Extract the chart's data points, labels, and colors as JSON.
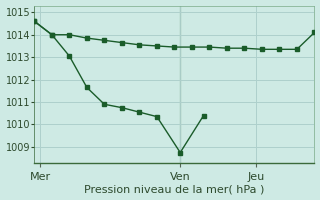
{
  "title": "",
  "xlabel": "Pression niveau de la mer( hPa )",
  "background_color": "#ceeae4",
  "grid_color": "#aed0cc",
  "line_color": "#1a5c2a",
  "marker_color": "#1a5c2a",
  "ylim": [
    1008.3,
    1015.3
  ],
  "yticks": [
    1009,
    1010,
    1011,
    1012,
    1013,
    1014,
    1015
  ],
  "xlim": [
    0,
    24
  ],
  "day_labels": [
    "Mer",
    "Ven",
    "Jeu"
  ],
  "day_positions": [
    0.5,
    12.5,
    19.0
  ],
  "vline_x": 12.5,
  "line1_x": [
    0,
    1.5,
    3.0,
    4.5,
    6.0,
    7.5,
    9.0,
    10.5,
    12.0,
    13.5,
    15.0,
    16.5,
    18.0,
    19.5,
    21.0,
    22.5,
    24.0
  ],
  "line1_y": [
    1014.6,
    1014.0,
    1014.0,
    1013.85,
    1013.75,
    1013.65,
    1013.55,
    1013.5,
    1013.45,
    1013.45,
    1013.45,
    1013.4,
    1013.4,
    1013.35,
    1013.35,
    1013.35,
    1014.1
  ],
  "line2_x": [
    0,
    1.5,
    3.0,
    4.5,
    6.0,
    7.5,
    9.0,
    10.5,
    12.5,
    14.5,
    16.5
  ],
  "line2_y": [
    1014.6,
    1014.0,
    1013.05,
    1011.65,
    1010.9,
    1010.75,
    1010.55,
    1010.35,
    1008.75,
    1010.4,
    null
  ],
  "font_color": "#2d4a2d"
}
